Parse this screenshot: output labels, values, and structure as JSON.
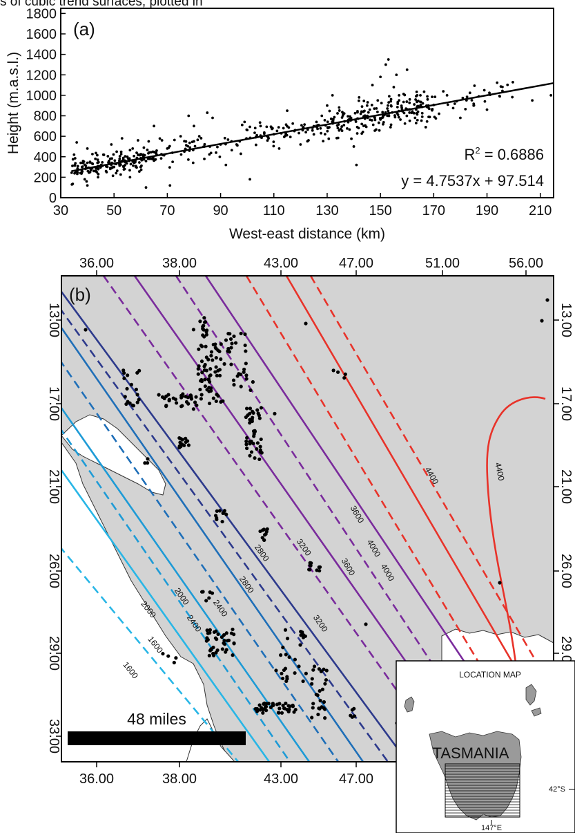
{
  "header_text": "s of cubic trend surfaces, plotted in",
  "chart_data": [
    {
      "panel": "(a)",
      "type": "scatter",
      "xlabel": "West-east distance (km)",
      "ylabel": "Height (m.a.s.l.)",
      "xlim": [
        30,
        215
      ],
      "ylim": [
        0,
        1850
      ],
      "xticks": [
        30,
        50,
        70,
        90,
        110,
        130,
        150,
        170,
        190,
        210
      ],
      "yticks": [
        0,
        200,
        400,
        600,
        800,
        1000,
        1200,
        1400,
        1600,
        1800
      ],
      "r2_label": "R",
      "r2_sup": "2",
      "r2_value": " = 0.6886",
      "equation": "y = 4.7537x + 97.514",
      "regression": {
        "slope": 4.7537,
        "intercept": 97.514,
        "x_range": [
          34,
          215
        ]
      },
      "points_note_count": 560,
      "points_sample": [
        [
          35,
          420
        ],
        [
          36,
          540
        ],
        [
          38,
          300
        ],
        [
          39,
          180
        ],
        [
          40,
          120
        ],
        [
          40,
          480
        ],
        [
          41,
          250
        ],
        [
          42,
          330
        ],
        [
          43,
          380
        ],
        [
          44,
          200
        ],
        [
          45,
          300
        ],
        [
          46,
          420
        ],
        [
          47,
          260
        ],
        [
          48,
          350
        ],
        [
          49,
          520
        ],
        [
          50,
          300
        ],
        [
          51,
          450
        ],
        [
          52,
          360
        ],
        [
          53,
          580
        ],
        [
          54,
          280
        ],
        [
          55,
          400
        ],
        [
          56,
          200
        ],
        [
          57,
          480
        ],
        [
          58,
          350
        ],
        [
          59,
          560
        ],
        [
          60,
          300
        ],
        [
          61,
          420
        ],
        [
          62,
          100
        ],
        [
          63,
          550
        ],
        [
          64,
          380
        ],
        [
          65,
          700
        ],
        [
          66,
          420
        ],
        [
          68,
          560
        ],
        [
          70,
          480
        ],
        [
          71,
          120
        ],
        [
          72,
          350
        ],
        [
          75,
          600
        ],
        [
          78,
          800
        ],
        [
          80,
          700
        ],
        [
          82,
          600
        ],
        [
          85,
          830
        ],
        [
          86,
          500
        ],
        [
          87,
          780
        ],
        [
          90,
          520
        ],
        [
          92,
          320
        ],
        [
          96,
          520
        ],
        [
          99,
          740
        ],
        [
          101,
          180
        ],
        [
          103,
          680
        ],
        [
          105,
          700
        ],
        [
          108,
          580
        ],
        [
          110,
          620
        ],
        [
          112,
          480
        ],
        [
          115,
          850
        ],
        [
          118,
          660
        ],
        [
          120,
          520
        ],
        [
          123,
          560
        ],
        [
          126,
          740
        ],
        [
          128,
          800
        ],
        [
          130,
          900
        ],
        [
          132,
          1000
        ],
        [
          134,
          680
        ],
        [
          136,
          820
        ],
        [
          138,
          760
        ],
        [
          140,
          500
        ],
        [
          141,
          320
        ],
        [
          142,
          980
        ],
        [
          143,
          720
        ],
        [
          145,
          900
        ],
        [
          146,
          860
        ],
        [
          147,
          1100
        ],
        [
          148,
          760
        ],
        [
          149,
          950
        ],
        [
          150,
          1180
        ],
        [
          151,
          800
        ],
        [
          152,
          1300
        ],
        [
          153,
          1350
        ],
        [
          154,
          900
        ],
        [
          155,
          1080
        ],
        [
          156,
          1200
        ],
        [
          157,
          1000
        ],
        [
          158,
          880
        ],
        [
          160,
          1250
        ],
        [
          161,
          960
        ],
        [
          163,
          780
        ],
        [
          165,
          1000
        ],
        [
          168,
          900
        ],
        [
          172,
          820
        ],
        [
          175,
          1000
        ],
        [
          180,
          780
        ],
        [
          185,
          900
        ],
        [
          189,
          1050
        ],
        [
          190,
          860
        ],
        [
          207,
          950
        ],
        [
          214,
          1000
        ]
      ]
    },
    {
      "panel": "(b)",
      "type": "contour-map",
      "x_top_ticks": [
        "36.00",
        "38.00",
        "43.00",
        "47.00",
        "51.00",
        "56.00"
      ],
      "x_bottom_ticks": [
        "36.00",
        "38.00",
        "43.00",
        "47.00"
      ],
      "y_ticks": [
        "13.00",
        "17.00",
        "21.00",
        "26.00",
        "29.00",
        "33.00"
      ],
      "contour_labels": [
        "1600",
        "1600",
        "2000",
        "2000",
        "2400",
        "2400",
        "2800",
        "2800",
        "3200",
        "3200",
        "3600",
        "3600",
        "4000",
        "4000",
        "4400",
        "4400"
      ],
      "scale_bar_label": "48 miles",
      "colors": {
        "cyan_light": "#29b6e6",
        "cyan_mid": "#1e9bd6",
        "blue_mid": "#1f6fb8",
        "navy": "#2d3a8c",
        "purple": "#7a2b9c",
        "red": "#e8332a",
        "map_fill": "#d3d3d3"
      }
    }
  ],
  "inset": {
    "title": "LOCATION MAP",
    "label": "TASMANIA",
    "lat_label": "42°S",
    "lon_label": "147°E"
  }
}
